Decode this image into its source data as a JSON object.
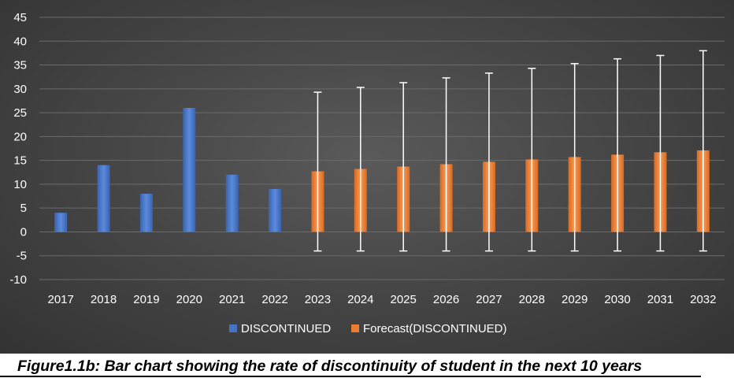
{
  "chart_data": {
    "type": "bar",
    "categories": [
      "2017",
      "2018",
      "2019",
      "2020",
      "2021",
      "2022",
      "2023",
      "2024",
      "2025",
      "2026",
      "2027",
      "2028",
      "2029",
      "2030",
      "2031",
      "2032"
    ],
    "series": [
      {
        "name": "DISCONTINUED",
        "color": "#4472c4",
        "values": [
          4,
          14,
          8,
          26,
          12,
          9,
          null,
          null,
          null,
          null,
          null,
          null,
          null,
          null,
          null,
          null
        ]
      },
      {
        "name": "Forecast(DISCONTINUED)",
        "color": "#ed7d31",
        "values": [
          null,
          null,
          null,
          null,
          null,
          null,
          12.7,
          13.2,
          13.7,
          14.2,
          14.7,
          15.2,
          15.7,
          16.2,
          16.7,
          17.1
        ],
        "error_upper": [
          null,
          null,
          null,
          null,
          null,
          null,
          29.3,
          30.3,
          31.3,
          32.3,
          33.3,
          34.3,
          35.3,
          36.3,
          37.0,
          38.0
        ],
        "error_lower": [
          null,
          null,
          null,
          null,
          null,
          null,
          -4,
          -4,
          -4,
          -4,
          -4,
          -4,
          -4,
          -4,
          -4,
          -4
        ]
      }
    ],
    "y_ticks": [
      "45",
      "40",
      "35",
      "30",
      "25",
      "20",
      "15",
      "10",
      "5",
      "0",
      "-5",
      "-10"
    ],
    "ylim": [
      -10,
      45
    ],
    "grid": true,
    "legend_position": "bottom",
    "text_color": "#ffffff",
    "grid_color": "#6b6b6b"
  },
  "caption": "Figure1.1b: Bar chart showing the rate of discontinuity of student in the next 10 years"
}
